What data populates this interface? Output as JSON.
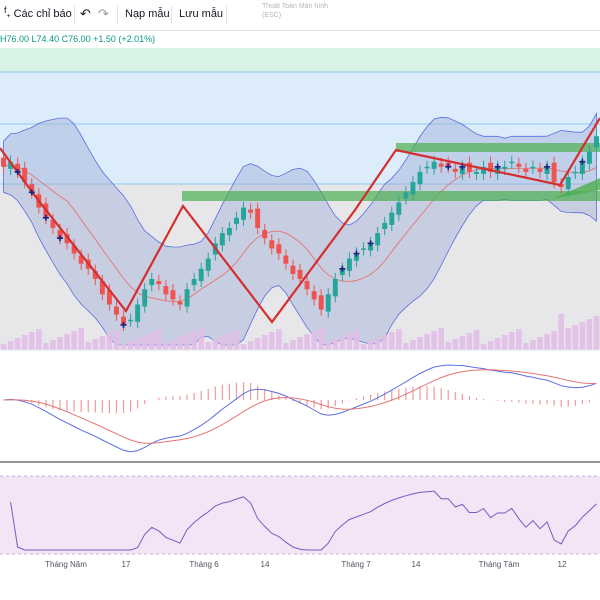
{
  "toolbar": {
    "indicators_label": "Các chỉ báo",
    "load_template_label": "Nạp mẫu",
    "save_template_label": "Lưu mẫu",
    "fullscreen_hint_line1": "Thoát Toàn Màn hình",
    "fullscreen_hint_line2": "(ESC)",
    "icons": [
      "add-indicator-icon",
      "undo-icon",
      "redo-icon"
    ]
  },
  "ohlc_readout": {
    "high": "H76.00",
    "low": "L74.40",
    "close": "C76.00",
    "change": "+1.50 (+2.01%)",
    "color": "#089981"
  },
  "time_axis": {
    "ticks": [
      "Tháng Năm",
      "17",
      "Tháng 6",
      "14",
      "Tháng 7",
      "14",
      "Tháng Tám",
      "12"
    ]
  },
  "colors": {
    "up_candle": "#26a69a",
    "down_candle": "#ef5350",
    "bollinger_fill": "#9fb0d8",
    "zigzag": "#d32f2f",
    "zone_green": "#4caf50",
    "macd_line": "#5b6ee1",
    "signal_line": "#e57373",
    "rsi_line": "#7e57c2",
    "rsi_band": "#f3e5f5",
    "volume_bar": "#e1bee7"
  },
  "chart_data": {
    "type": "candlestick",
    "series": [
      "Candles",
      "Bollinger Bands",
      "ZigZag",
      "Volume",
      "MACD",
      "RSI"
    ],
    "candles_close": [
      60,
      61,
      59,
      57,
      55,
      52,
      50,
      48,
      46,
      45,
      43,
      41,
      40,
      38,
      35,
      33,
      31,
      29,
      30,
      33,
      36,
      38,
      37,
      35,
      34,
      33,
      36,
      38,
      40,
      42,
      45,
      47,
      48,
      50,
      52,
      51,
      48,
      46,
      44,
      43,
      41,
      39,
      38,
      36,
      34,
      32,
      35,
      38,
      40,
      42,
      43,
      44,
      45,
      47,
      49,
      51,
      53,
      55,
      57,
      59,
      60,
      61,
      60,
      60,
      59,
      60,
      59,
      59,
      60,
      59,
      60,
      60,
      61,
      60,
      59,
      60,
      59,
      60,
      57,
      56,
      58,
      59,
      61,
      63,
      66
    ]
  }
}
